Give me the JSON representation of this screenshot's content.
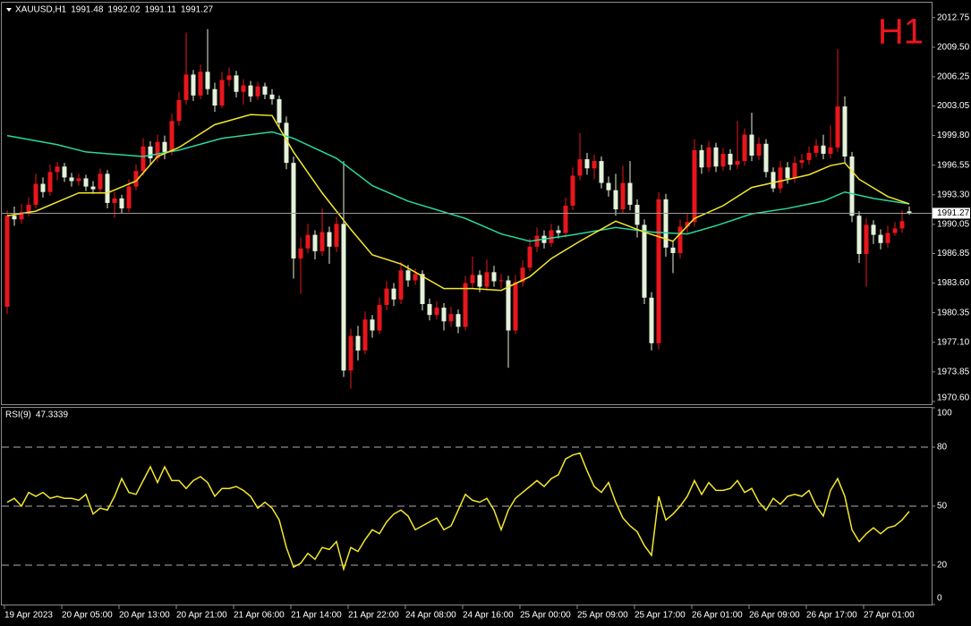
{
  "chart_data": [
    {
      "type": "candlestick",
      "title": "XAUUSD,H1",
      "annotation": "H1",
      "annotation_color": "#e8161c",
      "categories": [
        "19 Apr 2023",
        null,
        null,
        null,
        null,
        null,
        null,
        null,
        "20 Apr 05:00",
        null,
        null,
        null,
        null,
        null,
        null,
        null,
        "20 Apr 13:00",
        null,
        null,
        null,
        null,
        null,
        null,
        null,
        "20 Apr 21:00",
        null,
        null,
        null,
        null,
        null,
        null,
        null,
        "21 Apr 06:00",
        null,
        null,
        null,
        null,
        null,
        null,
        null,
        "21 Apr 14:00",
        null,
        null,
        null,
        null,
        null,
        null,
        null,
        "21 Apr 22:00",
        null,
        null,
        null,
        null,
        null,
        null,
        null,
        "24 Apr 08:00",
        null,
        null,
        null,
        null,
        null,
        null,
        null,
        "24 Apr 16:00",
        null,
        null,
        null,
        null,
        null,
        null,
        null,
        "25 Apr 00:00",
        null,
        null,
        null,
        null,
        null,
        null,
        null,
        "25 Apr 09:00",
        null,
        null,
        null,
        null,
        null,
        null,
        null,
        "25 Apr 17:00",
        null,
        null,
        null,
        null,
        null,
        null,
        null,
        "26 Apr 01:00",
        null,
        null,
        null,
        null,
        null,
        null,
        null,
        "26 Apr 09:00",
        null,
        null,
        null,
        null,
        null,
        null,
        null,
        "26 Apr 17:00",
        null,
        null,
        null,
        null,
        null,
        null,
        null,
        "27 Apr 01:00",
        null,
        null,
        null,
        null,
        null,
        null
      ],
      "open": [
        1981.0,
        1991.0,
        1990.6,
        1991.4,
        1992.2,
        1994.5,
        1993.6,
        1995.8,
        1996.4,
        1995.2,
        1994.8,
        1995.1,
        1994.2,
        1993.9,
        1995.6,
        1992.4,
        1992.9,
        1991.8,
        1994.2,
        1995.9,
        1998.6,
        1997.3,
        1999.1,
        1998.0,
        2001.4,
        2003.7,
        2006.5,
        2004.2,
        2006.8,
        2004.9,
        2003.1,
        2005.9,
        2006.4,
        2004.6,
        2005.3,
        2004.1,
        2005.2,
        2004.3,
        2003.8,
        2001.2,
        1996.8,
        1986.3,
        1987.4,
        1988.9,
        1987.1,
        1989.2,
        1987.6,
        1990.1,
        1974.0,
        1977.8,
        1976.2,
        1979.6,
        1978.4,
        1981.2,
        1983.0,
        1981.8,
        1985.0,
        1983.9,
        1984.6,
        1981.3,
        1980.1,
        1980.9,
        1979.4,
        1980.2,
        1978.8,
        1983.6,
        1984.5,
        1983.2,
        1984.8,
        1983.8,
        1983.9,
        1978.4,
        1983.7,
        1985.3,
        1987.6,
        1988.8,
        1988.0,
        1989.4,
        1989.1,
        1992.1,
        1995.4,
        1997.2,
        1996.2,
        1997.0,
        1994.6,
        1993.8,
        1991.7,
        1994.6,
        1992.2,
        1990.0,
        1982.0,
        1977.0,
        1992.8,
        1987.5,
        1986.9,
        1989.8,
        1990.3,
        1998.2,
        1996.3,
        1998.5,
        1996.4,
        1997.8,
        1996.6,
        1997.0,
        1999.9,
        1997.6,
        1998.9,
        1995.8,
        1994.0,
        1996.3,
        1995.1,
        1996.8,
        1997.1,
        1997.9,
        1998.7,
        1997.8,
        1998.5,
        2003.0,
        1997.5,
        1991.0,
        1986.8,
        1990.0,
        1988.9,
        1988.0,
        1989.1,
        1989.6,
        1991.48
      ],
      "high": [
        1991.6,
        1992.0,
        1992.3,
        1993.0,
        1995.6,
        1995.2,
        1996.6,
        1996.9,
        1996.8,
        1995.7,
        1995.6,
        1995.5,
        1994.8,
        1996.2,
        1996.0,
        1993.6,
        1993.3,
        1995.0,
        1996.6,
        1999.5,
        1999.2,
        1999.9,
        1999.8,
        2002.2,
        2004.6,
        2011.1,
        2007.0,
        2007.6,
        2011.5,
        2005.6,
        2006.8,
        2007.3,
        2006.9,
        2006.0,
        2005.8,
        2005.7,
        2005.6,
        2004.9,
        2004.2,
        2001.9,
        1997.5,
        1988.6,
        1990.1,
        1989.4,
        1991.8,
        1989.8,
        1990.9,
        1997.0,
        1978.6,
        1978.9,
        1980.5,
        1980.1,
        1982.0,
        1983.8,
        1983.6,
        1985.9,
        1985.6,
        1985.2,
        1985.0,
        1981.9,
        1981.6,
        1981.4,
        1981.0,
        1980.7,
        1984.4,
        1986.5,
        1985.0,
        1986.2,
        1985.5,
        1984.6,
        1984.4,
        1984.5,
        1986.1,
        1988.5,
        1989.7,
        1989.4,
        1990.1,
        1989.9,
        1993.0,
        1996.3,
        2000.1,
        1997.9,
        1997.7,
        1997.5,
        1995.3,
        1995.6,
        1996.5,
        1997.0,
        1992.8,
        1990.6,
        1982.6,
        1993.6,
        1993.4,
        1988.3,
        1990.6,
        1991.2,
        1999.4,
        1998.8,
        1999.2,
        1999.0,
        1998.4,
        1998.3,
        2001.4,
        2000.6,
        2002.3,
        1999.6,
        1999.4,
        1996.3,
        1997.0,
        1996.9,
        1997.5,
        1997.8,
        1998.6,
        1999.4,
        1999.9,
        2000.9,
        2009.3,
        2004.1,
        1998.0,
        1991.5,
        1990.7,
        1990.5,
        1989.5,
        1989.9,
        1990.3,
        1991.6,
        1992.02
      ],
      "low": [
        1980.2,
        1989.9,
        1990.1,
        1990.9,
        1991.8,
        1993.0,
        1993.2,
        1994.9,
        1994.7,
        1994.2,
        1994.3,
        1993.7,
        1993.4,
        1993.5,
        1991.8,
        1990.8,
        1991.2,
        1991.4,
        1993.8,
        1995.4,
        1996.6,
        1996.9,
        1997.2,
        1997.6,
        2000.9,
        2003.2,
        2003.6,
        2003.8,
        2004.3,
        2002.4,
        2002.8,
        2005.2,
        2004.0,
        2003.2,
        2003.5,
        2003.7,
        2003.8,
        2003.2,
        2000.6,
        1996.1,
        1984.1,
        1982.4,
        1986.9,
        1986.2,
        1986.6,
        1985.7,
        1987.0,
        1973.3,
        1972.0,
        1975.1,
        1975.8,
        1977.6,
        1978.0,
        1980.6,
        1981.1,
        1981.3,
        1983.2,
        1983.4,
        1980.6,
        1979.5,
        1979.6,
        1978.4,
        1978.8,
        1978.1,
        1978.4,
        1983.1,
        1982.6,
        1982.8,
        1983.2,
        1983.0,
        1974.3,
        1978.0,
        1983.2,
        1984.9,
        1987.0,
        1987.4,
        1987.6,
        1988.5,
        1988.6,
        1991.6,
        1994.9,
        1995.5,
        1995.0,
        1994.0,
        1993.1,
        1991.0,
        1991.3,
        1991.6,
        1988.6,
        1981.3,
        1976.2,
        1976.3,
        1986.5,
        1984.7,
        1986.3,
        1989.1,
        1989.8,
        1995.6,
        1995.8,
        1995.8,
        1995.9,
        1996.0,
        1996.1,
        1996.5,
        1997.0,
        1997.1,
        1995.2,
        1993.6,
        1993.5,
        1994.5,
        1994.6,
        1996.2,
        1996.6,
        1997.4,
        1997.2,
        1997.3,
        1998.0,
        1996.8,
        1990.3,
        1985.8,
        1983.2,
        1987.9,
        1987.3,
        1987.5,
        1988.8,
        1989.1,
        1991.11
      ],
      "close": [
        1991.0,
        1990.6,
        1991.4,
        1992.2,
        1994.5,
        1993.6,
        1995.8,
        1996.4,
        1995.2,
        1994.8,
        1995.1,
        1994.2,
        1993.9,
        1995.6,
        1992.4,
        1992.9,
        1991.8,
        1994.2,
        1995.9,
        1998.6,
        1997.3,
        1999.1,
        1998.0,
        2001.4,
        2003.7,
        2006.5,
        2004.2,
        2006.8,
        2004.9,
        2003.1,
        2005.9,
        2006.4,
        2004.6,
        2005.3,
        2004.1,
        2005.2,
        2004.3,
        2003.8,
        2001.2,
        1996.8,
        1986.3,
        1987.4,
        1988.9,
        1987.1,
        1989.2,
        1987.6,
        1990.1,
        1974.0,
        1977.8,
        1976.2,
        1979.6,
        1978.4,
        1981.2,
        1983.0,
        1981.8,
        1985.0,
        1983.9,
        1984.6,
        1981.3,
        1980.1,
        1980.9,
        1979.4,
        1980.2,
        1978.8,
        1983.6,
        1984.5,
        1983.2,
        1984.8,
        1983.8,
        1983.9,
        1978.4,
        1983.7,
        1985.3,
        1987.6,
        1988.8,
        1988.0,
        1989.4,
        1989.1,
        1992.1,
        1995.4,
        1997.2,
        1996.2,
        1997.0,
        1994.6,
        1993.8,
        1991.7,
        1994.6,
        1992.2,
        1990.0,
        1982.0,
        1977.0,
        1992.8,
        1987.5,
        1986.9,
        1989.8,
        1990.3,
        1998.2,
        1996.3,
        1998.5,
        1996.4,
        1997.8,
        1996.6,
        1997.0,
        1999.9,
        1997.6,
        1998.9,
        1995.8,
        1994.0,
        1996.3,
        1995.1,
        1996.8,
        1997.1,
        1997.9,
        1998.7,
        1997.8,
        1998.5,
        2003.0,
        1997.5,
        1991.0,
        1986.8,
        1990.0,
        1988.9,
        1988.0,
        1989.1,
        1989.6,
        1990.4,
        1991.27
      ],
      "up_color": "#e8161c",
      "down_color": "#e4f2da",
      "ylim": [
        1970.3,
        2013.9
      ],
      "yticks": [
        1973.85,
        {
          "value": 1970.6,
          "label": "1970.60"
        },
        {
          "value": 1977.1,
          "label": "1977.10"
        },
        1980.35,
        {
          "value": 1983.6,
          "label": "1983.60"
        },
        1986.85,
        1990.05,
        {
          "value": 1993.3,
          "label": "1993.30"
        },
        1996.55,
        {
          "value": 1999.8,
          "label": "1999.80"
        },
        2003.05,
        2006.25,
        {
          "value": 2009.5,
          "label": "2009.50"
        },
        2012.75
      ],
      "overlays": [
        {
          "color": "#28d8a0",
          "x": [
            0,
            7,
            11,
            19,
            24,
            30,
            37,
            40,
            46,
            51,
            56,
            64,
            69,
            73,
            79,
            85,
            90,
            95,
            99,
            104,
            109,
            114,
            117,
            121,
            126
          ],
          "values": [
            1999.8,
            1998.8,
            1998.0,
            1997.5,
            1998.2,
            1999.5,
            2000.2,
            1999.5,
            1997.3,
            1994.3,
            1992.6,
            1990.7,
            1989.0,
            1988.2,
            1988.9,
            1989.7,
            1989.2,
            1989.0,
            1989.9,
            1991.2,
            1991.8,
            1992.6,
            1993.6,
            1992.9,
            1992.3
          ]
        },
        {
          "color": "#f4e82a",
          "x": [
            0,
            4,
            10,
            14,
            18,
            21,
            24,
            29,
            34,
            37,
            40,
            44,
            48,
            51,
            55,
            61,
            65,
            69,
            73,
            76,
            80,
            85,
            89,
            93,
            96,
            100,
            104,
            108,
            112,
            115,
            117,
            119,
            123,
            126
          ],
          "values": [
            1991.0,
            1991.5,
            1993.5,
            1993.5,
            1994.8,
            1997.5,
            1998.5,
            2001.0,
            2002.1,
            2002.0,
            1998.0,
            1993.5,
            1989.5,
            1986.7,
            1985.7,
            1983.0,
            1983.0,
            1982.8,
            1984.3,
            1986.3,
            1988.2,
            1990.4,
            1989.2,
            1988.2,
            1990.7,
            1992.1,
            1994.1,
            1994.8,
            1995.5,
            1996.5,
            1996.8,
            1995.0,
            1993.1,
            1992.3
          ]
        }
      ]
    },
    {
      "type": "line",
      "title": "RSI(9)",
      "color": "#f4e82a",
      "values": [
        52,
        54,
        50,
        57,
        55,
        57,
        54,
        55,
        54,
        54,
        53,
        56,
        46,
        49,
        48,
        55,
        64,
        57,
        56,
        63,
        70,
        62,
        70,
        63,
        63,
        59,
        63,
        65,
        62,
        55,
        59,
        59,
        60,
        58,
        55,
        49,
        52,
        49,
        43,
        29,
        19,
        21,
        26,
        23,
        29,
        28,
        32,
        18,
        29,
        27,
        33,
        38,
        36,
        42,
        46,
        48,
        45,
        38,
        40,
        42,
        44,
        38,
        40,
        48,
        56,
        53,
        52,
        54,
        48,
        38,
        48,
        54,
        57,
        60,
        63,
        60,
        64,
        66,
        74,
        76,
        77,
        68,
        60,
        57,
        62,
        52,
        44,
        40,
        37,
        30,
        25,
        55,
        43,
        46,
        50,
        55,
        63,
        56,
        62,
        58,
        58,
        59,
        63,
        57,
        59,
        52,
        48,
        54,
        51,
        55,
        56,
        55,
        58,
        50,
        45,
        58,
        64,
        55,
        38,
        32,
        36,
        39,
        36,
        39,
        40,
        43,
        47.3339
      ],
      "ylim": [
        0,
        100
      ],
      "yticks": [
        0,
        20,
        50,
        80,
        100
      ]
    }
  ]
}
